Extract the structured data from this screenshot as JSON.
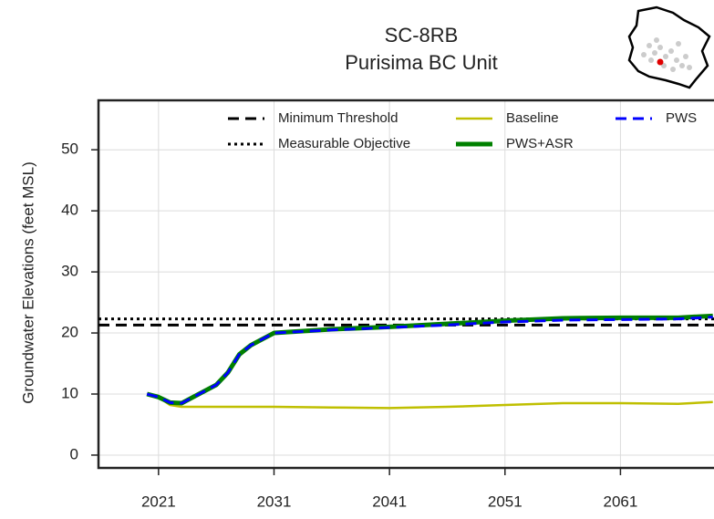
{
  "chart_data": {
    "type": "line",
    "title": "SC-8RB",
    "subtitle": "Purisima BC Unit",
    "y_label": "Groundwater Elevations (feet MSL)",
    "xlim": [
      2015.8,
      2069.1
    ],
    "ylim": [
      -2.1,
      58.1
    ],
    "xticks": [
      2021,
      2031,
      2041,
      2051,
      2061
    ],
    "yticks": [
      0,
      10,
      20,
      30,
      40,
      50
    ],
    "grid": true,
    "reference_lines": [
      {
        "name": "Minimum Threshold",
        "value": 21.3,
        "color": "#000000",
        "style": "dashed"
      },
      {
        "name": "Measurable Objective",
        "value": 22.3,
        "color": "#000000",
        "style": "dotted"
      }
    ],
    "x": [
      2020,
      2021,
      2022,
      2023,
      2024,
      2026,
      2027,
      2028,
      2029,
      2031,
      2036,
      2041,
      2046,
      2051,
      2056,
      2061,
      2066,
      2069
    ],
    "series": [
      {
        "name": "Baseline",
        "color": "#bfbf00",
        "style": "solid",
        "width": 2.5,
        "values": [
          10,
          9.5,
          8.2,
          7.9,
          7.9,
          7.9,
          7.9,
          7.9,
          7.9,
          7.9,
          7.8,
          7.7,
          7.9,
          8.2,
          8.5,
          8.5,
          8.4,
          8.7
        ]
      },
      {
        "name": "PWS+ASR",
        "color": "#008000",
        "style": "solid",
        "width": 5,
        "values": [
          10,
          9.5,
          8.6,
          8.5,
          9.5,
          11.5,
          13.5,
          16.5,
          18,
          20,
          20.6,
          21,
          21.5,
          22,
          22.4,
          22.5,
          22.5,
          22.8
        ]
      },
      {
        "name": "PWS",
        "color": "#0000ff",
        "style": "dashed",
        "width": 3,
        "values": [
          10,
          9.5,
          8.6,
          8.5,
          9.5,
          11.5,
          13.5,
          16.5,
          18,
          20,
          20.5,
          20.9,
          21.3,
          21.8,
          22.1,
          22.2,
          22.3,
          22.6
        ]
      }
    ]
  }
}
